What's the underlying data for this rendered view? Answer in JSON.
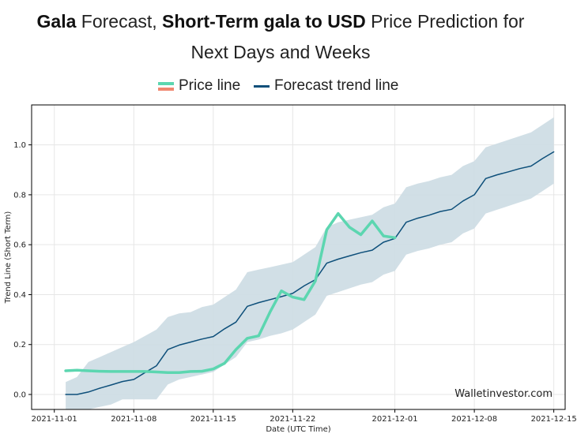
{
  "title": {
    "brand": "Gala",
    "part1": " Forecast, ",
    "bold2": "Short-Term gala to USD",
    "part3": " Price Prediction for",
    "line2": "Next Days and Weeks"
  },
  "legend": {
    "price_label": "Price line",
    "forecast_label": "Forecast trend line"
  },
  "watermark": "Walletinvestor.com",
  "colors": {
    "price": "#5cd6b0",
    "price_alt": "#f08770",
    "forecast": "#0d4f7a",
    "band": "#ccdbe3",
    "grid": "#e6e6e6"
  },
  "chart_data": {
    "type": "line",
    "xlabel": "Date (UTC Time)",
    "ylabel": "Trend Line (Short Term)",
    "xlim": [
      "2021-10-30",
      "2021-12-16"
    ],
    "ylim": [
      -0.06,
      1.16
    ],
    "grid": true,
    "legend_position": "top-center",
    "x_ticks": [
      "2021-11-01",
      "2021-11-08",
      "2021-11-15",
      "2021-11-22",
      "2021-12-01",
      "2021-12-08",
      "2021-12-15"
    ],
    "y_ticks": [
      0.0,
      0.2,
      0.4,
      0.6,
      0.8,
      1.0
    ],
    "y_tick_labels": [
      "0.0",
      "0.2",
      "0.4",
      "0.6",
      "0.8",
      "1.0"
    ],
    "series": [
      {
        "name": "Price line",
        "x": [
          "2021-11-02",
          "2021-11-03",
          "2021-11-04",
          "2021-11-05",
          "2021-11-06",
          "2021-11-07",
          "2021-11-08",
          "2021-11-09",
          "2021-11-10",
          "2021-11-11",
          "2021-11-12",
          "2021-11-13",
          "2021-11-14",
          "2021-11-15",
          "2021-11-16",
          "2021-11-17",
          "2021-11-18",
          "2021-11-19",
          "2021-11-20",
          "2021-11-21",
          "2021-11-22",
          "2021-11-23",
          "2021-11-24",
          "2021-11-25",
          "2021-11-26",
          "2021-11-27",
          "2021-11-28",
          "2021-11-29",
          "2021-11-30",
          "2021-12-01"
        ],
        "y": [
          0.095,
          0.097,
          0.095,
          0.093,
          0.092,
          0.092,
          0.092,
          0.092,
          0.09,
          0.088,
          0.088,
          0.092,
          0.093,
          0.102,
          0.125,
          0.18,
          0.225,
          0.235,
          0.33,
          0.415,
          0.39,
          0.38,
          0.455,
          0.66,
          0.725,
          0.67,
          0.64,
          0.695,
          0.635,
          0.628
        ]
      },
      {
        "name": "Forecast trend line",
        "x": [
          "2021-11-02",
          "2021-11-03",
          "2021-11-04",
          "2021-11-05",
          "2021-11-06",
          "2021-11-07",
          "2021-11-08",
          "2021-11-09",
          "2021-11-10",
          "2021-11-11",
          "2021-11-12",
          "2021-11-13",
          "2021-11-14",
          "2021-11-15",
          "2021-11-16",
          "2021-11-17",
          "2021-11-18",
          "2021-11-19",
          "2021-11-20",
          "2021-11-21",
          "2021-11-22",
          "2021-11-23",
          "2021-11-24",
          "2021-11-25",
          "2021-11-26",
          "2021-11-27",
          "2021-11-28",
          "2021-11-29",
          "2021-11-30",
          "2021-12-01",
          "2021-12-02",
          "2021-12-03",
          "2021-12-04",
          "2021-12-05",
          "2021-12-06",
          "2021-12-07",
          "2021-12-08",
          "2021-12-09",
          "2021-12-10",
          "2021-12-11",
          "2021-12-12",
          "2021-12-13",
          "2021-12-14",
          "2021-12-15"
        ],
        "y": [
          0.0,
          0.0,
          0.01,
          0.025,
          0.038,
          0.052,
          0.06,
          0.088,
          0.115,
          0.18,
          0.198,
          0.21,
          0.222,
          0.232,
          0.263,
          0.29,
          0.353,
          0.368,
          0.38,
          0.392,
          0.405,
          0.435,
          0.46,
          0.526,
          0.542,
          0.555,
          0.568,
          0.578,
          0.61,
          0.625,
          0.69,
          0.706,
          0.718,
          0.733,
          0.742,
          0.775,
          0.8,
          0.865,
          0.88,
          0.892,
          0.905,
          0.915,
          0.945,
          0.972
        ]
      },
      {
        "name": "",
        "kind": "band",
        "x": [
          "2021-11-02",
          "2021-11-03",
          "2021-11-04",
          "2021-11-05",
          "2021-11-06",
          "2021-11-07",
          "2021-11-08",
          "2021-11-09",
          "2021-11-10",
          "2021-11-11",
          "2021-11-12",
          "2021-11-13",
          "2021-11-14",
          "2021-11-15",
          "2021-11-16",
          "2021-11-17",
          "2021-11-18",
          "2021-11-19",
          "2021-11-20",
          "2021-11-21",
          "2021-11-22",
          "2021-11-23",
          "2021-11-24",
          "2021-11-25",
          "2021-11-26",
          "2021-11-27",
          "2021-11-28",
          "2021-11-29",
          "2021-11-30",
          "2021-12-01",
          "2021-12-02",
          "2021-12-03",
          "2021-12-04",
          "2021-12-05",
          "2021-12-06",
          "2021-12-07",
          "2021-12-08",
          "2021-12-09",
          "2021-12-10",
          "2021-12-11",
          "2021-12-12",
          "2021-12-13",
          "2021-12-14",
          "2021-12-15"
        ],
        "upper": [
          0.05,
          0.07,
          0.13,
          0.15,
          0.17,
          0.19,
          0.21,
          0.235,
          0.26,
          0.31,
          0.325,
          0.33,
          0.35,
          0.36,
          0.39,
          0.42,
          0.49,
          0.5,
          0.51,
          0.52,
          0.53,
          0.56,
          0.59,
          0.67,
          0.69,
          0.7,
          0.71,
          0.72,
          0.75,
          0.765,
          0.83,
          0.845,
          0.855,
          0.87,
          0.88,
          0.915,
          0.935,
          0.99,
          1.005,
          1.02,
          1.035,
          1.05,
          1.08,
          1.11
        ],
        "lower": [
          -0.06,
          -0.06,
          -0.06,
          -0.05,
          -0.04,
          -0.02,
          -0.02,
          -0.02,
          -0.02,
          0.04,
          0.06,
          0.07,
          0.08,
          0.09,
          0.12,
          0.15,
          0.21,
          0.22,
          0.235,
          0.245,
          0.26,
          0.29,
          0.32,
          0.395,
          0.41,
          0.425,
          0.44,
          0.45,
          0.48,
          0.495,
          0.56,
          0.575,
          0.585,
          0.6,
          0.61,
          0.645,
          0.665,
          0.725,
          0.74,
          0.755,
          0.77,
          0.785,
          0.815,
          0.845
        ]
      }
    ]
  }
}
